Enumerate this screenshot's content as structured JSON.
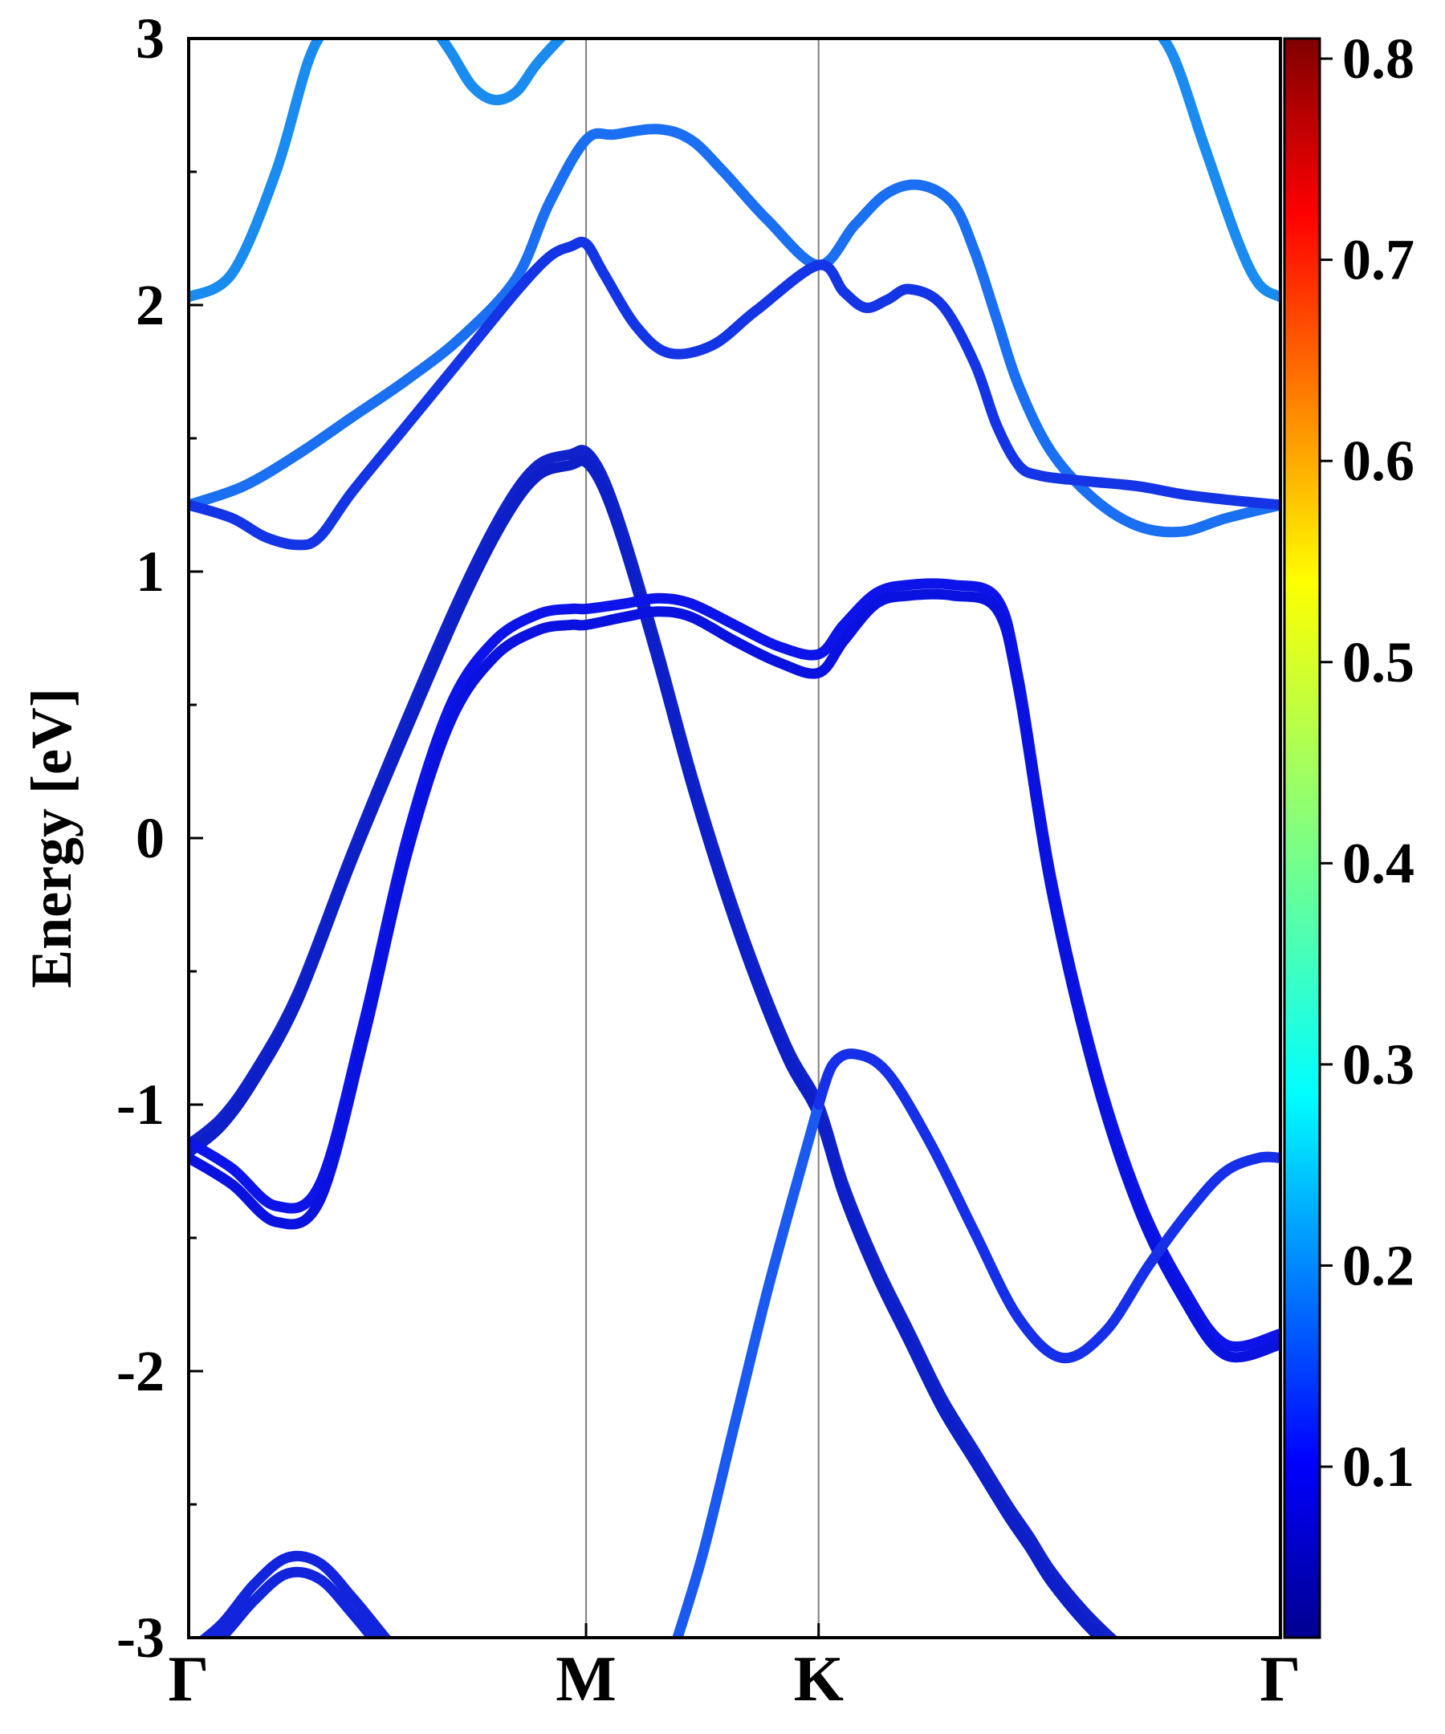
{
  "chart_data": {
    "type": "line",
    "title": "",
    "xlabel": "",
    "ylabel": "Energy [eV]",
    "ylim": [
      -3,
      3
    ],
    "yticks": [
      -3,
      -2,
      -1,
      0,
      1,
      2,
      3
    ],
    "k_path_labels": [
      "Γ",
      "M",
      "K",
      "Γ"
    ],
    "k_path_positions": [
      0,
      0.364,
      0.577,
      1.0
    ],
    "grid": false,
    "colorbar": {
      "colormap": "jet",
      "range": [
        0.015,
        0.81
      ],
      "ticks": [
        0.1,
        0.2,
        0.3,
        0.4,
        0.5,
        0.6,
        0.7,
        0.8
      ],
      "tick_labels": [
        "0.1",
        "0.2",
        "0.3",
        "0.4",
        "0.5",
        "0.6",
        "0.7",
        "0.8"
      ]
    },
    "series": [
      {
        "color": "#1a8cf0",
        "x": [
          0,
          0.04,
          0.08,
          0.11,
          0.13,
          0.155
        ],
        "y": [
          2.03,
          2.12,
          2.5,
          2.92,
          3.05,
          3.1
        ]
      },
      {
        "color": "#1a8cf0",
        "x": [
          0.215,
          0.24,
          0.26,
          0.28,
          0.3,
          0.318,
          0.34,
          0.36
        ],
        "y": [
          3.1,
          2.95,
          2.82,
          2.77,
          2.8,
          2.9,
          3.0,
          3.08
        ]
      },
      {
        "color": "#1a8cf0",
        "x": [
          0.87,
          0.9,
          0.93,
          0.96,
          0.98,
          1.0
        ],
        "y": [
          3.1,
          2.95,
          2.6,
          2.25,
          2.08,
          2.03
        ]
      },
      {
        "color": "#1a6ff2",
        "x": [
          0,
          0.05,
          0.1,
          0.15,
          0.2,
          0.25,
          0.3,
          0.33,
          0.364,
          0.39,
          0.43,
          0.46,
          0.49,
          0.53,
          0.577,
          0.61,
          0.64,
          0.67,
          0.7,
          0.72,
          0.74,
          0.76,
          0.79,
          0.83,
          0.87,
          0.91,
          0.95,
          1.0
        ],
        "y": [
          1.25,
          1.32,
          1.44,
          1.58,
          1.72,
          1.88,
          2.1,
          2.38,
          2.62,
          2.64,
          2.66,
          2.62,
          2.5,
          2.32,
          2.15,
          2.3,
          2.42,
          2.45,
          2.38,
          2.2,
          1.95,
          1.7,
          1.45,
          1.27,
          1.17,
          1.15,
          1.2,
          1.25
        ]
      },
      {
        "color": "#1435e6",
        "x": [
          0,
          0.04,
          0.07,
          0.1,
          0.12,
          0.15,
          0.2,
          0.25,
          0.3,
          0.33,
          0.35,
          0.364,
          0.38,
          0.41,
          0.44,
          0.48,
          0.52,
          0.577,
          0.6,
          0.62,
          0.64,
          0.66,
          0.69,
          0.72,
          0.74,
          0.76,
          0.78,
          0.82,
          0.87,
          0.91,
          0.95,
          1.0
        ],
        "y": [
          1.25,
          1.2,
          1.13,
          1.1,
          1.13,
          1.3,
          1.55,
          1.8,
          2.05,
          2.18,
          2.22,
          2.23,
          2.12,
          1.92,
          1.82,
          1.85,
          1.98,
          2.15,
          2.05,
          1.99,
          2.02,
          2.06,
          2.0,
          1.78,
          1.55,
          1.4,
          1.36,
          1.34,
          1.32,
          1.29,
          1.27,
          1.25
        ]
      },
      {
        "color": "#1022cc",
        "x": [
          0,
          0.03,
          0.06,
          0.1,
          0.15,
          0.2,
          0.25,
          0.29,
          0.32,
          0.35,
          0.364,
          0.38,
          0.4,
          0.43,
          0.46,
          0.49,
          0.52,
          0.55,
          0.577,
          0.6,
          0.63,
          0.66,
          0.69,
          0.72,
          0.75,
          0.77,
          0.79,
          0.82,
          0.85,
          0.88,
          0.92,
          0.96,
          1.0
        ],
        "y": [
          -1.15,
          -1.05,
          -0.88,
          -0.58,
          -0.05,
          0.45,
          0.92,
          1.24,
          1.4,
          1.44,
          1.45,
          1.35,
          1.12,
          0.7,
          0.25,
          -0.15,
          -0.5,
          -0.8,
          -1.0,
          -1.3,
          -1.6,
          -1.85,
          -2.1,
          -2.3,
          -2.5,
          -2.62,
          -2.75,
          -2.9,
          -3.02,
          -3.12,
          -3.2,
          -3.22,
          -3.22
        ]
      },
      {
        "color": "#0d1fc6",
        "x": [
          0,
          0.03,
          0.06,
          0.1,
          0.15,
          0.2,
          0.25,
          0.29,
          0.32,
          0.35,
          0.364,
          0.38,
          0.4,
          0.43,
          0.46,
          0.49,
          0.52,
          0.55,
          0.577,
          0.6,
          0.63,
          0.66,
          0.69,
          0.72,
          0.75,
          0.77,
          0.79,
          0.82,
          0.85,
          0.88,
          0.92,
          0.96,
          1.0
        ],
        "y": [
          -1.18,
          -1.08,
          -0.91,
          -0.61,
          -0.08,
          0.41,
          0.88,
          1.2,
          1.36,
          1.4,
          1.41,
          1.31,
          1.08,
          0.66,
          0.21,
          -0.19,
          -0.54,
          -0.84,
          -1.04,
          -1.34,
          -1.64,
          -1.89,
          -2.14,
          -2.34,
          -2.54,
          -2.66,
          -2.79,
          -2.94,
          -3.06,
          -3.16,
          -3.24,
          -3.26,
          -3.26
        ]
      },
      {
        "color": "#0c14ea",
        "x": [
          0,
          0.04,
          0.08,
          0.12,
          0.16,
          0.2,
          0.24,
          0.28,
          0.32,
          0.35,
          0.364,
          0.4,
          0.43,
          0.46,
          0.5,
          0.54,
          0.577,
          0.6,
          0.63,
          0.66,
          0.7,
          0.74,
          0.76,
          0.79,
          0.83,
          0.87,
          0.91,
          0.95,
          1.0
        ],
        "y": [
          -1.14,
          -1.24,
          -1.38,
          -1.3,
          -0.7,
          0.0,
          0.5,
          0.74,
          0.84,
          0.86,
          0.86,
          0.88,
          0.9,
          0.88,
          0.8,
          0.72,
          0.69,
          0.8,
          0.92,
          0.95,
          0.95,
          0.9,
          0.6,
          -0.15,
          -0.85,
          -1.35,
          -1.68,
          -1.9,
          -1.86
        ]
      },
      {
        "color": "#0a12e0",
        "x": [
          0,
          0.04,
          0.08,
          0.12,
          0.16,
          0.2,
          0.24,
          0.28,
          0.32,
          0.35,
          0.364,
          0.4,
          0.43,
          0.46,
          0.5,
          0.54,
          0.577,
          0.6,
          0.63,
          0.66,
          0.7,
          0.74,
          0.76,
          0.79,
          0.83,
          0.87,
          0.91,
          0.95,
          1.0
        ],
        "y": [
          -1.2,
          -1.3,
          -1.44,
          -1.36,
          -0.76,
          -0.06,
          0.44,
          0.68,
          0.78,
          0.8,
          0.8,
          0.83,
          0.85,
          0.83,
          0.74,
          0.66,
          0.62,
          0.74,
          0.88,
          0.91,
          0.91,
          0.86,
          0.56,
          -0.19,
          -0.89,
          -1.39,
          -1.72,
          -1.94,
          -1.9
        ]
      },
      {
        "color": "#1a5af0",
        "x": [
          0.44,
          0.47,
          0.5,
          0.53,
          0.56,
          0.577
        ],
        "y": [
          -3.1,
          -2.7,
          -2.2,
          -1.7,
          -1.25,
          -1.0
        ]
      },
      {
        "color": "#1530e8",
        "x": [
          0.577,
          0.59,
          0.61,
          0.64,
          0.68,
          0.72,
          0.76,
          0.8,
          0.84,
          0.88,
          0.92,
          0.95,
          0.98,
          1.0
        ],
        "y": [
          -1.0,
          -0.85,
          -0.81,
          -0.88,
          -1.15,
          -1.48,
          -1.8,
          -1.95,
          -1.85,
          -1.6,
          -1.38,
          -1.25,
          -1.2,
          -1.2
        ]
      },
      {
        "color": "#1225dd",
        "x": [
          0,
          0.03,
          0.06,
          0.09,
          0.12,
          0.15,
          0.18,
          0.2
        ],
        "y": [
          -3.05,
          -2.95,
          -2.8,
          -2.7,
          -2.72,
          -2.85,
          -3.0,
          -3.1
        ]
      },
      {
        "color": "#1225dd",
        "x": [
          0,
          0.03,
          0.06,
          0.09,
          0.12,
          0.15,
          0.18,
          0.2
        ],
        "y": [
          -3.1,
          -3.0,
          -2.86,
          -2.76,
          -2.78,
          -2.91,
          -3.06,
          -3.16
        ]
      }
    ]
  }
}
